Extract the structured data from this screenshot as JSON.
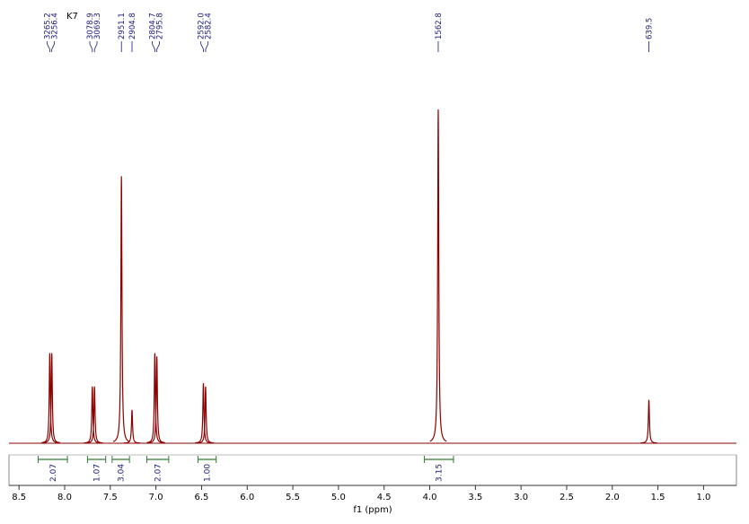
{
  "chart_data": {
    "type": "nmr",
    "sample_label": "K7",
    "x_label": "f1 (ppm)",
    "xlim": [
      8.61,
      0.64
    ],
    "ylim": [
      0,
      100
    ],
    "xticks": [
      8.5,
      {
        "value": 8,
        "label": "8.0"
      },
      7.5,
      {
        "value": 7,
        "label": "7.0"
      },
      6.5,
      {
        "value": 6,
        "label": "6.0"
      },
      5.5,
      {
        "value": 5,
        "label": "5.0"
      },
      4.5,
      {
        "value": 4,
        "label": "4.0"
      },
      3.5,
      {
        "value": 3,
        "label": "3.0"
      },
      2.5,
      {
        "value": 2,
        "label": "2.0"
      },
      1.5,
      {
        "value": 1,
        "label": "1.0"
      }
    ],
    "color": "#8b0000",
    "peaks": {
      "labels": [
        "3265.2",
        "3256.4",
        "3078.9",
        "3069.3",
        "2951.1",
        "2904.8",
        "2804.7",
        "2795.8",
        "2592.0",
        "2582.4",
        "1562.8",
        "639.5"
      ],
      "x": [
        8.163,
        8.141,
        7.697,
        7.673,
        7.378,
        7.262,
        7.012,
        6.99,
        6.48,
        6.456,
        3.907,
        1.599
      ],
      "values": [
        27,
        27,
        17,
        17,
        80,
        10,
        27,
        26,
        18,
        17,
        100,
        13
      ]
    },
    "integrals": {
      "labels": [
        "2.07",
        "1.07",
        "3.04",
        "2.07",
        "1.00",
        "3.15"
      ],
      "ranges": [
        [
          8.29,
          7.97
        ],
        [
          7.75,
          7.55
        ],
        [
          7.48,
          7.29
        ],
        [
          7.1,
          6.86
        ],
        [
          6.54,
          6.34
        ],
        [
          4.06,
          3.74
        ]
      ]
    }
  }
}
